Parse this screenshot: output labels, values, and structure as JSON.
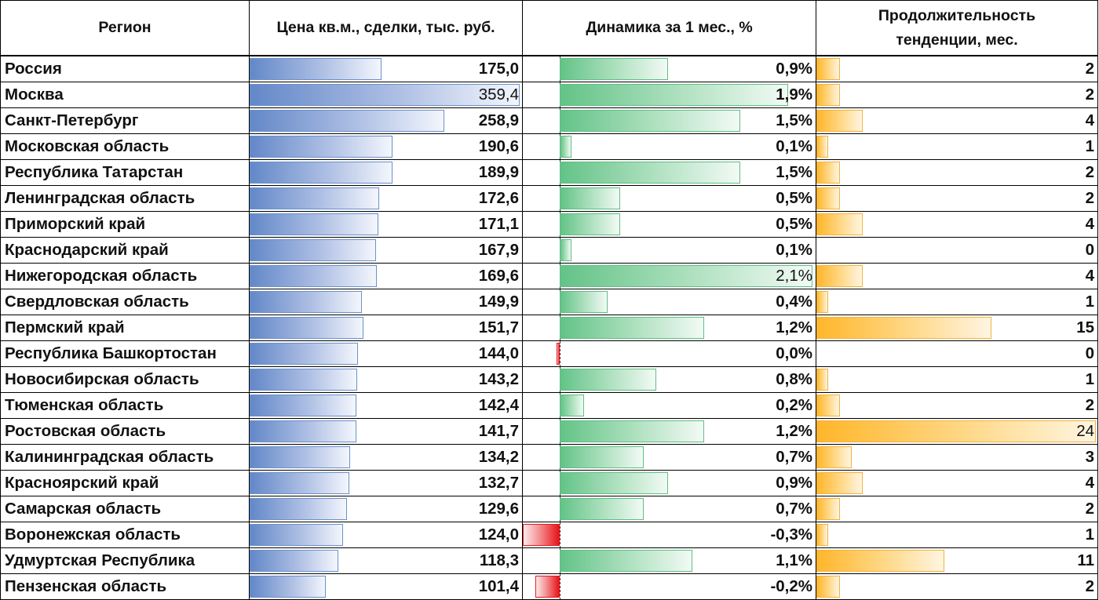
{
  "headers": {
    "region": "Регион",
    "price": "Цена кв.м., сделки, тыс. руб.",
    "dynamics": "Динамика за 1 мес., %",
    "duration_line1": "Продолжительность",
    "duration_line2": "тенденции, мес."
  },
  "chart_data": {
    "type": "table",
    "columns": [
      "Регион",
      "Цена кв.м., сделки, тыс. руб.",
      "Динамика за 1 мес., %",
      "Продолжительность тенденции, мес."
    ],
    "rows": [
      {
        "region": "Россия",
        "price": 175.0,
        "price_label": "175,0",
        "dynamics": 0.9,
        "dynamics_label": "0,9%",
        "duration": 2,
        "duration_label": "2"
      },
      {
        "region": "Москва",
        "price": 359.4,
        "price_label": "359,4",
        "dynamics": 1.9,
        "dynamics_label": "1,9%",
        "duration": 2,
        "duration_label": "2"
      },
      {
        "region": "Санкт-Петербург",
        "price": 258.9,
        "price_label": "258,9",
        "dynamics": 1.5,
        "dynamics_label": "1,5%",
        "duration": 4,
        "duration_label": "4"
      },
      {
        "region": "Московская область",
        "price": 190.6,
        "price_label": "190,6",
        "dynamics": 0.1,
        "dynamics_label": "0,1%",
        "duration": 1,
        "duration_label": "1"
      },
      {
        "region": "Республика Татарстан",
        "price": 189.9,
        "price_label": "189,9",
        "dynamics": 1.5,
        "dynamics_label": "1,5%",
        "duration": 2,
        "duration_label": "2"
      },
      {
        "region": "Ленинградская область",
        "price": 172.6,
        "price_label": "172,6",
        "dynamics": 0.5,
        "dynamics_label": "0,5%",
        "duration": 2,
        "duration_label": "2"
      },
      {
        "region": "Приморский край",
        "price": 171.1,
        "price_label": "171,1",
        "dynamics": 0.5,
        "dynamics_label": "0,5%",
        "duration": 4,
        "duration_label": "4"
      },
      {
        "region": "Краснодарский край",
        "price": 167.9,
        "price_label": "167,9",
        "dynamics": 0.1,
        "dynamics_label": "0,1%",
        "duration": 0,
        "duration_label": "0"
      },
      {
        "region": "Нижегородская область",
        "price": 169.6,
        "price_label": "169,6",
        "dynamics": 2.1,
        "dynamics_label": "2,1%",
        "duration": 4,
        "duration_label": "4"
      },
      {
        "region": "Свердловская область",
        "price": 149.9,
        "price_label": "149,9",
        "dynamics": 0.4,
        "dynamics_label": "0,4%",
        "duration": 1,
        "duration_label": "1"
      },
      {
        "region": "Пермский край",
        "price": 151.7,
        "price_label": "151,7",
        "dynamics": 1.2,
        "dynamics_label": "1,2%",
        "duration": 15,
        "duration_label": "15"
      },
      {
        "region": "Республика Башкортостан",
        "price": 144.0,
        "price_label": "144,0",
        "dynamics": -0.02,
        "dynamics_label": "0,0%",
        "duration": 0,
        "duration_label": "0"
      },
      {
        "region": "Новосибирская область",
        "price": 143.2,
        "price_label": "143,2",
        "dynamics": 0.8,
        "dynamics_label": "0,8%",
        "duration": 1,
        "duration_label": "1"
      },
      {
        "region": "Тюменская область",
        "price": 142.4,
        "price_label": "142,4",
        "dynamics": 0.2,
        "dynamics_label": "0,2%",
        "duration": 2,
        "duration_label": "2"
      },
      {
        "region": "Ростовская область",
        "price": 141.7,
        "price_label": "141,7",
        "dynamics": 1.2,
        "dynamics_label": "1,2%",
        "duration": 24,
        "duration_label": "24"
      },
      {
        "region": "Калининградская область",
        "price": 134.2,
        "price_label": "134,2",
        "dynamics": 0.7,
        "dynamics_label": "0,7%",
        "duration": 3,
        "duration_label": "3"
      },
      {
        "region": "Красноярский край",
        "price": 132.7,
        "price_label": "132,7",
        "dynamics": 0.9,
        "dynamics_label": "0,9%",
        "duration": 4,
        "duration_label": "4"
      },
      {
        "region": "Самарская область",
        "price": 129.6,
        "price_label": "129,6",
        "dynamics": 0.7,
        "dynamics_label": "0,7%",
        "duration": 2,
        "duration_label": "2"
      },
      {
        "region": "Воронежская область",
        "price": 124.0,
        "price_label": "124,0",
        "dynamics": -0.3,
        "dynamics_label": "-0,3%",
        "duration": 1,
        "duration_label": "1"
      },
      {
        "region": "Удмуртская Республика",
        "price": 118.3,
        "price_label": "118,3",
        "dynamics": 1.1,
        "dynamics_label": "1,1%",
        "duration": 11,
        "duration_label": "11"
      },
      {
        "region": "Пензенская область",
        "price": 101.4,
        "price_label": "101,4",
        "dynamics": -0.2,
        "dynamics_label": "-0,2%",
        "duration": 2,
        "duration_label": "2"
      }
    ],
    "scales": {
      "price_max": 359.4,
      "dynamics_max": 2.1,
      "dynamics_min": -0.3,
      "duration_max": 24
    },
    "colors": {
      "price_bar": "#6388c8",
      "dynamics_pos": "#63c387",
      "dynamics_neg": "#e8141a",
      "duration_bar": "#ffb62b"
    }
  }
}
